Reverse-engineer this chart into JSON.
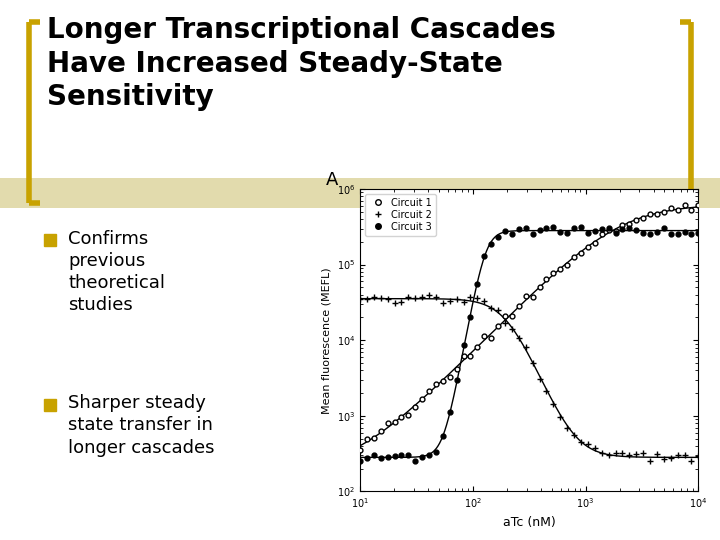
{
  "title_line1": "Longer Transcriptional Cascades",
  "title_line2": "Have Increased Steady-State",
  "title_line3": "Sensitivity",
  "bullet1_text": "Confirms\nprevious\ntheoretical\nstudies",
  "bullet2_text": "Sharper steady\nstate transfer in\nlonger cascades",
  "bullet_color": "#C8A200",
  "title_band_color": "#D6CC8A",
  "bracket_color": "#C8A200",
  "bg_color": "#FFFFFF",
  "plot_label": "A",
  "xlabel": "aTc (nM)",
  "ylabel": "Mean fluorescence (MEFL)",
  "legend": [
    "Circuit 1",
    "Circuit 2",
    "Circuit 3"
  ],
  "x_log_min": 1,
  "x_log_max": 4,
  "y_log_min": 2,
  "y_log_max": 6,
  "title_fontsize": 20,
  "bullet_fontsize": 13
}
